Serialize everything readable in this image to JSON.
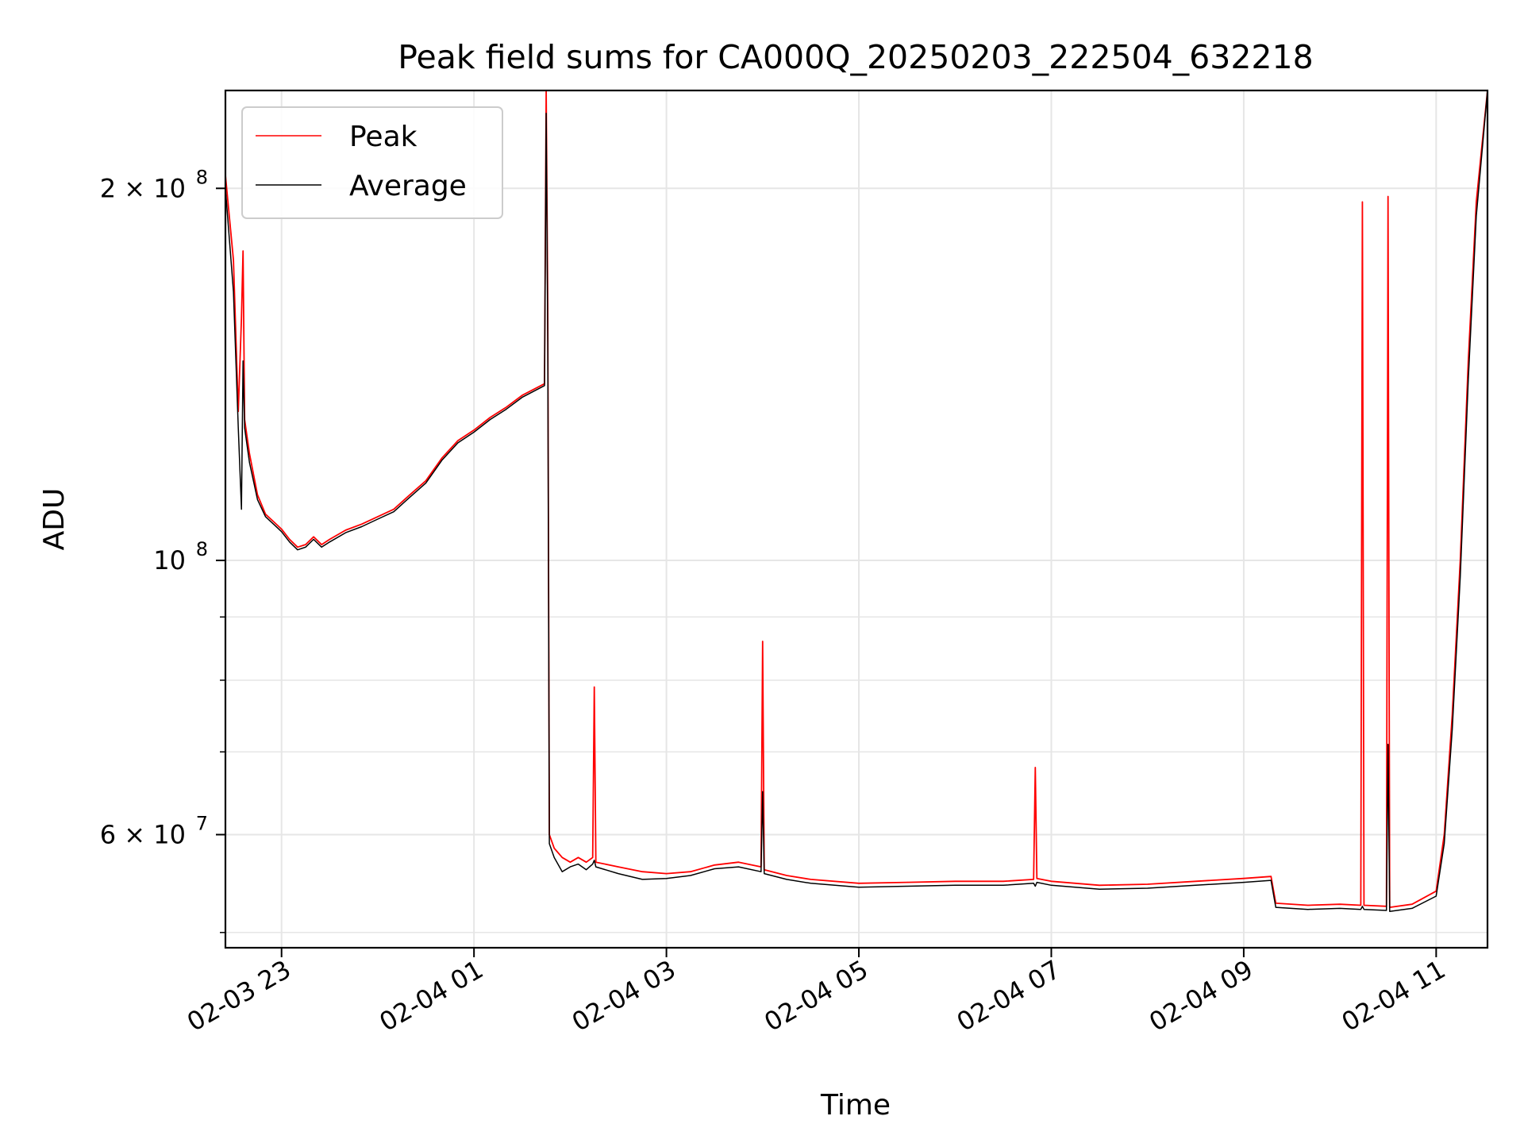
{
  "chart_data": {
    "type": "line",
    "title": "Peak field sums for CA000Q_20250203_222504_632218",
    "xlabel": "Time",
    "ylabel": "ADU",
    "y_scale": "log",
    "ylim": [
      48600000,
      240000000
    ],
    "xlim": [
      "2025-02-03 22:25",
      "2025-02-04 11:32"
    ],
    "x_ticks": [
      {
        "t": "2025-02-03 23:00",
        "label": "02-03 23"
      },
      {
        "t": "2025-02-04 01:00",
        "label": "02-04 01"
      },
      {
        "t": "2025-02-04 03:00",
        "label": "02-04 03"
      },
      {
        "t": "2025-02-04 05:00",
        "label": "02-04 05"
      },
      {
        "t": "2025-02-04 07:00",
        "label": "02-04 07"
      },
      {
        "t": "2025-02-04 09:00",
        "label": "02-04 09"
      },
      {
        "t": "2025-02-04 11:00",
        "label": "02-04 11"
      }
    ],
    "y_ticks": [
      {
        "v": 200000000,
        "base": "2 × 10",
        "exp": "8"
      },
      {
        "v": 100000000,
        "base": "10",
        "exp": "8"
      },
      {
        "v": 60000000,
        "base": "6 × 10",
        "exp": "7"
      }
    ],
    "y_minor_ticks": [
      50000000,
      70000000,
      80000000,
      90000000
    ],
    "grid": true,
    "legend": "upper-left",
    "colors": {
      "peak": "#ff0000",
      "average": "#000000",
      "grid": "#e6e6e6"
    },
    "series": [
      {
        "name": "Peak",
        "color": "#ff0000",
        "points": [
          [
            "2025-02-03 22:25",
            205000000
          ],
          [
            "2025-02-03 22:30",
            175000000
          ],
          [
            "2025-02-03 22:33",
            132000000
          ],
          [
            "2025-02-03 22:35",
            157000000
          ],
          [
            "2025-02-03 22:36",
            178000000
          ],
          [
            "2025-02-03 22:37",
            130000000
          ],
          [
            "2025-02-03 22:40",
            122000000
          ],
          [
            "2025-02-03 22:45",
            113000000
          ],
          [
            "2025-02-03 22:50",
            109000000
          ],
          [
            "2025-02-03 22:55",
            107500000
          ],
          [
            "2025-02-03 23:00",
            106000000
          ],
          [
            "2025-02-03 23:05",
            104000000
          ],
          [
            "2025-02-03 23:10",
            102500000
          ],
          [
            "2025-02-03 23:15",
            103000000
          ],
          [
            "2025-02-03 23:20",
            104500000
          ],
          [
            "2025-02-03 23:25",
            103000000
          ],
          [
            "2025-02-03 23:30",
            104000000
          ],
          [
            "2025-02-03 23:40",
            105800000
          ],
          [
            "2025-02-03 23:50",
            107000000
          ],
          [
            "2025-02-04 00:00",
            108500000
          ],
          [
            "2025-02-04 00:10",
            110000000
          ],
          [
            "2025-02-04 00:20",
            113000000
          ],
          [
            "2025-02-04 00:30",
            116000000
          ],
          [
            "2025-02-04 00:40",
            121000000
          ],
          [
            "2025-02-04 00:50",
            125000000
          ],
          [
            "2025-02-04 01:00",
            127500000
          ],
          [
            "2025-02-04 01:10",
            130500000
          ],
          [
            "2025-02-04 01:20",
            133000000
          ],
          [
            "2025-02-04 01:30",
            136000000
          ],
          [
            "2025-02-04 01:44",
            139000000
          ],
          [
            "2025-02-04 01:45",
            240000000
          ],
          [
            "2025-02-04 01:46",
            160000000
          ],
          [
            "2025-02-04 01:47",
            60000000
          ],
          [
            "2025-02-04 01:50",
            58500000
          ],
          [
            "2025-02-04 01:55",
            57500000
          ],
          [
            "2025-02-04 02:00",
            57000000
          ],
          [
            "2025-02-04 02:05",
            57500000
          ],
          [
            "2025-02-04 02:10",
            57000000
          ],
          [
            "2025-02-04 02:14",
            57500000
          ],
          [
            "2025-02-04 02:15",
            79000000
          ],
          [
            "2025-02-04 02:16",
            57000000
          ],
          [
            "2025-02-04 02:30",
            56500000
          ],
          [
            "2025-02-04 02:45",
            56000000
          ],
          [
            "2025-02-04 03:00",
            55800000
          ],
          [
            "2025-02-04 03:15",
            56000000
          ],
          [
            "2025-02-04 03:30",
            56700000
          ],
          [
            "2025-02-04 03:45",
            57000000
          ],
          [
            "2025-02-04 03:59",
            56500000
          ],
          [
            "2025-02-04 04:00",
            86000000
          ],
          [
            "2025-02-04 04:01",
            56200000
          ],
          [
            "2025-02-04 04:15",
            55600000
          ],
          [
            "2025-02-04 04:30",
            55200000
          ],
          [
            "2025-02-04 05:00",
            54800000
          ],
          [
            "2025-02-04 05:30",
            54900000
          ],
          [
            "2025-02-04 06:00",
            55000000
          ],
          [
            "2025-02-04 06:30",
            55000000
          ],
          [
            "2025-02-04 06:49",
            55200000
          ],
          [
            "2025-02-04 06:50",
            68000000
          ],
          [
            "2025-02-04 06:51",
            55300000
          ],
          [
            "2025-02-04 07:00",
            55000000
          ],
          [
            "2025-02-04 07:30",
            54600000
          ],
          [
            "2025-02-04 08:00",
            54700000
          ],
          [
            "2025-02-04 08:30",
            55000000
          ],
          [
            "2025-02-04 09:00",
            55300000
          ],
          [
            "2025-02-04 09:17",
            55500000
          ],
          [
            "2025-02-04 09:20",
            52800000
          ],
          [
            "2025-02-04 09:40",
            52600000
          ],
          [
            "2025-02-04 10:00",
            52700000
          ],
          [
            "2025-02-04 10:13",
            52600000
          ],
          [
            "2025-02-04 10:14",
            195000000
          ],
          [
            "2025-02-04 10:15",
            52600000
          ],
          [
            "2025-02-04 10:29",
            52500000
          ],
          [
            "2025-02-04 10:30",
            197000000
          ],
          [
            "2025-02-04 10:31",
            52400000
          ],
          [
            "2025-02-04 10:45",
            52700000
          ],
          [
            "2025-02-04 11:00",
            54000000
          ],
          [
            "2025-02-04 11:05",
            60000000
          ],
          [
            "2025-02-04 11:10",
            75000000
          ],
          [
            "2025-02-04 11:15",
            100000000
          ],
          [
            "2025-02-04 11:20",
            145000000
          ],
          [
            "2025-02-04 11:25",
            195000000
          ],
          [
            "2025-02-04 11:32",
            240000000
          ]
        ]
      },
      {
        "name": "Average",
        "color": "#000000",
        "points": [
          [
            "2025-02-03 22:25",
            200000000
          ],
          [
            "2025-02-03 22:30",
            165000000
          ],
          [
            "2025-02-03 22:33",
            128000000
          ],
          [
            "2025-02-03 22:35",
            110000000
          ],
          [
            "2025-02-03 22:36",
            145000000
          ],
          [
            "2025-02-03 22:37",
            128000000
          ],
          [
            "2025-02-03 22:40",
            120000000
          ],
          [
            "2025-02-03 22:45",
            112000000
          ],
          [
            "2025-02-03 22:50",
            108500000
          ],
          [
            "2025-02-03 22:55",
            107000000
          ],
          [
            "2025-02-03 23:00",
            105500000
          ],
          [
            "2025-02-03 23:05",
            103500000
          ],
          [
            "2025-02-03 23:10",
            102000000
          ],
          [
            "2025-02-03 23:15",
            102500000
          ],
          [
            "2025-02-03 23:20",
            104000000
          ],
          [
            "2025-02-03 23:25",
            102500000
          ],
          [
            "2025-02-03 23:30",
            103500000
          ],
          [
            "2025-02-03 23:40",
            105300000
          ],
          [
            "2025-02-03 23:50",
            106500000
          ],
          [
            "2025-02-04 00:00",
            108000000
          ],
          [
            "2025-02-04 00:10",
            109500000
          ],
          [
            "2025-02-04 00:20",
            112500000
          ],
          [
            "2025-02-04 00:30",
            115500000
          ],
          [
            "2025-02-04 00:40",
            120500000
          ],
          [
            "2025-02-04 00:50",
            124500000
          ],
          [
            "2025-02-04 01:00",
            127000000
          ],
          [
            "2025-02-04 01:10",
            130000000
          ],
          [
            "2025-02-04 01:20",
            132500000
          ],
          [
            "2025-02-04 01:30",
            135500000
          ],
          [
            "2025-02-04 01:44",
            138500000
          ],
          [
            "2025-02-04 01:45",
            230000000
          ],
          [
            "2025-02-04 01:46",
            150000000
          ],
          [
            "2025-02-04 01:47",
            59000000
          ],
          [
            "2025-02-04 01:50",
            57500000
          ],
          [
            "2025-02-04 01:55",
            56000000
          ],
          [
            "2025-02-04 02:00",
            56500000
          ],
          [
            "2025-02-04 02:05",
            56800000
          ],
          [
            "2025-02-04 02:10",
            56200000
          ],
          [
            "2025-02-04 02:14",
            56800000
          ],
          [
            "2025-02-04 02:15",
            57200000
          ],
          [
            "2025-02-04 02:16",
            56500000
          ],
          [
            "2025-02-04 02:30",
            55800000
          ],
          [
            "2025-02-04 02:45",
            55200000
          ],
          [
            "2025-02-04 03:00",
            55300000
          ],
          [
            "2025-02-04 03:15",
            55600000
          ],
          [
            "2025-02-04 03:30",
            56300000
          ],
          [
            "2025-02-04 03:45",
            56500000
          ],
          [
            "2025-02-04 03:59",
            56000000
          ],
          [
            "2025-02-04 04:00",
            65000000
          ],
          [
            "2025-02-04 04:01",
            55800000
          ],
          [
            "2025-02-04 04:15",
            55200000
          ],
          [
            "2025-02-04 04:30",
            54800000
          ],
          [
            "2025-02-04 05:00",
            54400000
          ],
          [
            "2025-02-04 05:30",
            54500000
          ],
          [
            "2025-02-04 06:00",
            54600000
          ],
          [
            "2025-02-04 06:30",
            54600000
          ],
          [
            "2025-02-04 06:49",
            54800000
          ],
          [
            "2025-02-04 06:50",
            54500000
          ],
          [
            "2025-02-04 06:51",
            54900000
          ],
          [
            "2025-02-04 07:00",
            54600000
          ],
          [
            "2025-02-04 07:30",
            54200000
          ],
          [
            "2025-02-04 08:00",
            54300000
          ],
          [
            "2025-02-04 08:30",
            54600000
          ],
          [
            "2025-02-04 09:00",
            54900000
          ],
          [
            "2025-02-04 09:17",
            55100000
          ],
          [
            "2025-02-04 09:20",
            52400000
          ],
          [
            "2025-02-04 09:40",
            52200000
          ],
          [
            "2025-02-04 10:00",
            52300000
          ],
          [
            "2025-02-04 10:13",
            52200000
          ],
          [
            "2025-02-04 10:14",
            52500000
          ],
          [
            "2025-02-04 10:15",
            52200000
          ],
          [
            "2025-02-04 10:29",
            52100000
          ],
          [
            "2025-02-04 10:30",
            71000000
          ],
          [
            "2025-02-04 10:31",
            52000000
          ],
          [
            "2025-02-04 10:45",
            52300000
          ],
          [
            "2025-02-04 11:00",
            53500000
          ],
          [
            "2025-02-04 11:05",
            59000000
          ],
          [
            "2025-02-04 11:10",
            73000000
          ],
          [
            "2025-02-04 11:15",
            97000000
          ],
          [
            "2025-02-04 11:20",
            140000000
          ],
          [
            "2025-02-04 11:25",
            190000000
          ],
          [
            "2025-02-04 11:32",
            240000000
          ]
        ]
      }
    ]
  }
}
